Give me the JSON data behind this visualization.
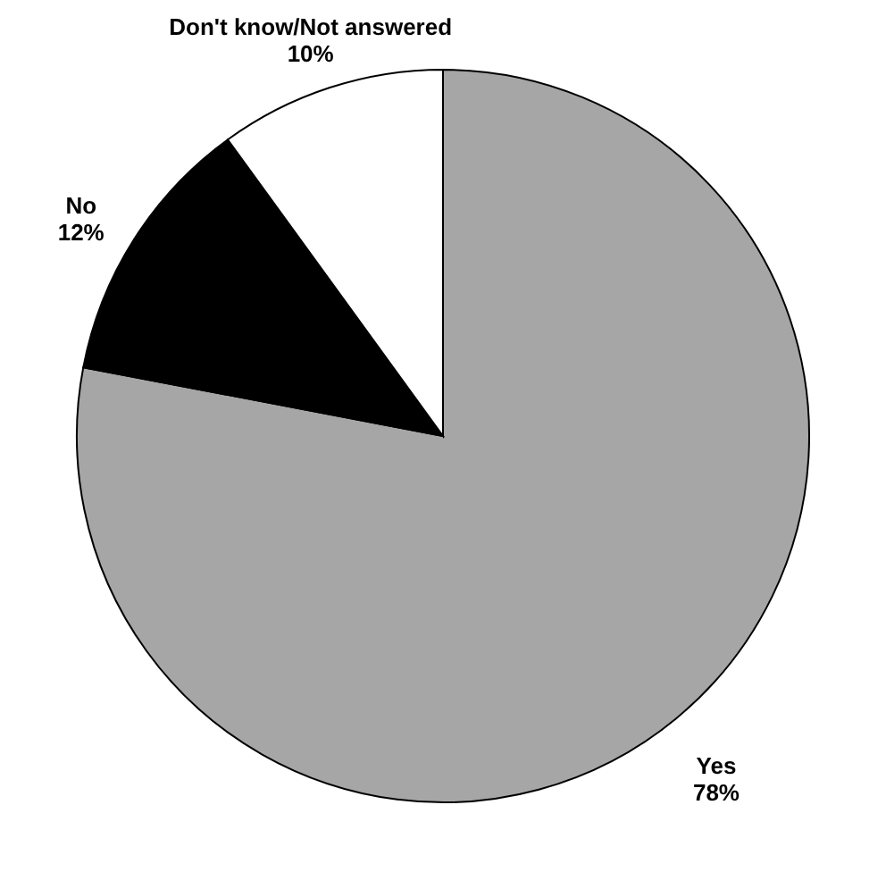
{
  "chart_data": {
    "type": "pie",
    "categories": [
      "Yes",
      "No",
      "Don't know/Not answered"
    ],
    "values": [
      78,
      12,
      10
    ],
    "value_labels": [
      "78%",
      "12%",
      "10%"
    ],
    "colors": [
      "#a6a6a6",
      "#000000",
      "#ffffff"
    ]
  }
}
